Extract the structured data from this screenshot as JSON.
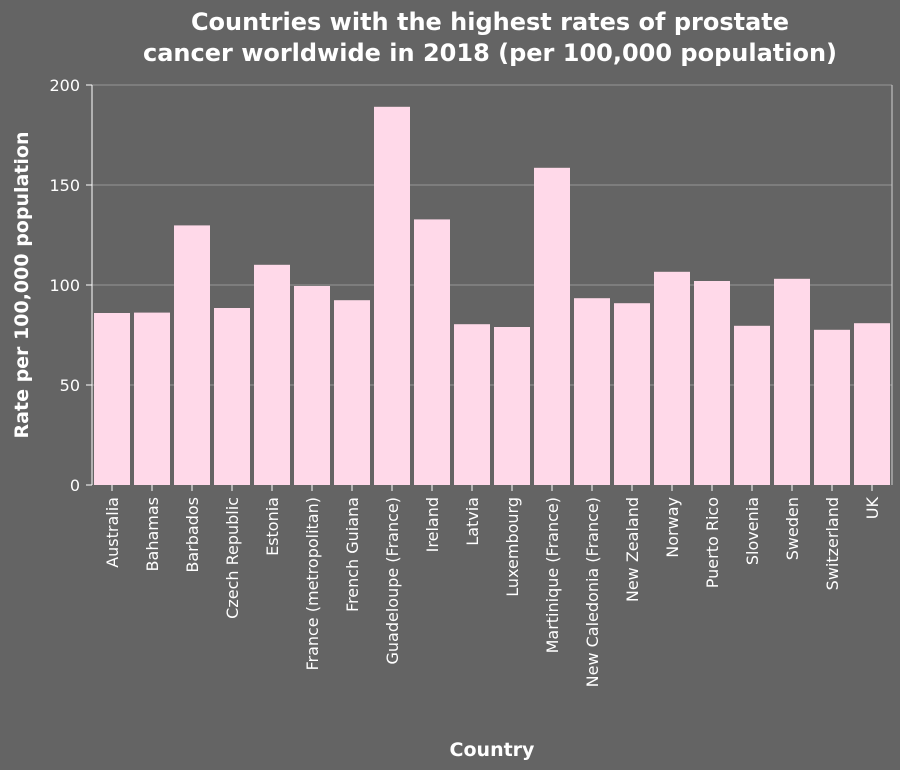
{
  "chart_data": {
    "type": "bar",
    "title_lines": [
      "Countries with the highest rates of prostate",
      "cancer worldwide in 2018 (per 100,000 population)"
    ],
    "xlabel": "Country",
    "ylabel": "Rate per 100,000 population",
    "ylim": [
      0,
      200
    ],
    "yticks": [
      0,
      50,
      100,
      150,
      200
    ],
    "grid": true,
    "categories": [
      "Australia",
      "Bahamas",
      "Barbados",
      "Czech Republic",
      "Estonia",
      "France (metropolitan)",
      "French Guiana",
      "Guadeloupe (France)",
      "Ireland",
      "Latvia",
      "Luxembourg",
      "Martinique (France)",
      "New Caledonia (France)",
      "New Zealand",
      "Norway",
      "Puerto Rico",
      "Slovenia",
      "Sweden",
      "Switzerland",
      "UK"
    ],
    "values": [
      86,
      86.2,
      129.8,
      88.5,
      110.1,
      99.5,
      92.4,
      189.1,
      132.8,
      80.4,
      79,
      158.6,
      93.4,
      90.9,
      106.6,
      102,
      79.6,
      103.1,
      77.6,
      80.9
    ],
    "colors": {
      "background": "#646464",
      "bar": "#ffd9e9",
      "grid": "#8c8c8c",
      "text": "#ffffff"
    }
  }
}
